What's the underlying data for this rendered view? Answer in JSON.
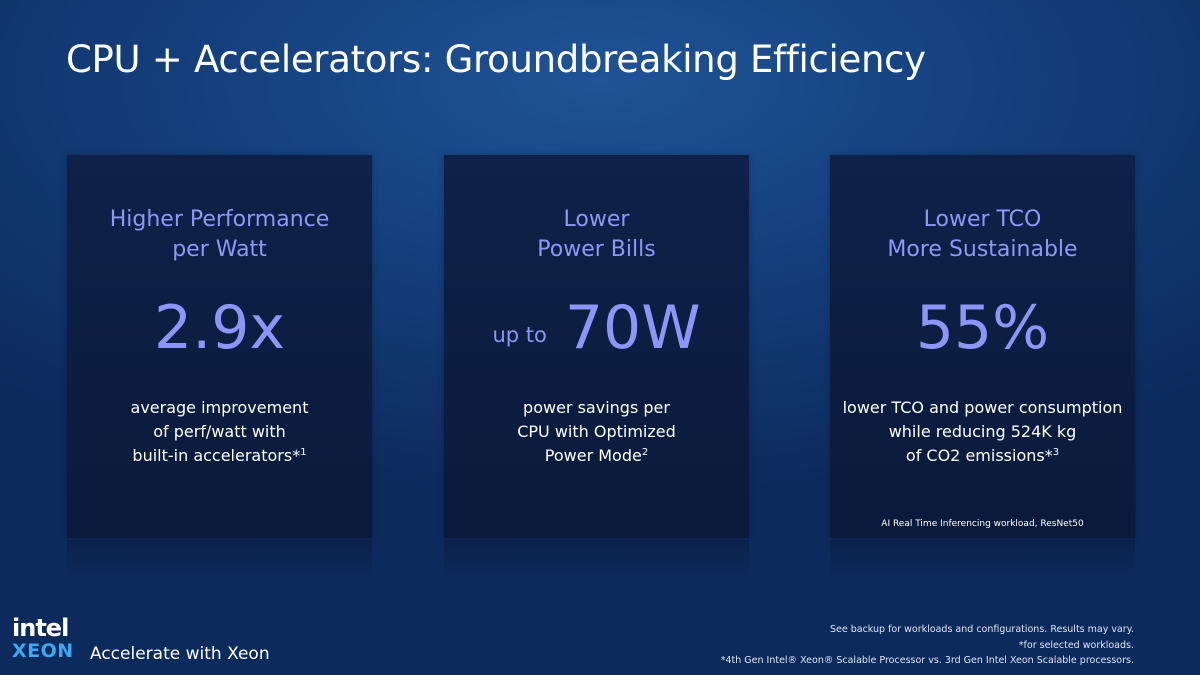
{
  "title": "CPU + Accelerators: Groundbreaking Efficiency",
  "cards": [
    {
      "heading": [
        "Higher Performance",
        "per Watt"
      ],
      "value": "2.9x",
      "description": [
        {
          "text": "average improvement"
        },
        {
          "text": "of perf/watt with"
        },
        {
          "text": "built-in accelerators*",
          "sup": "1"
        }
      ]
    },
    {
      "heading": [
        "Lower",
        "Power Bills"
      ],
      "prefix": "up to",
      "value": "70W",
      "description": [
        {
          "text": "power savings per"
        },
        {
          "text": "CPU with Optimized"
        },
        {
          "text": "Power Mode",
          "sup": "2"
        }
      ]
    },
    {
      "heading": [
        "Lower TCO",
        "More Sustainable"
      ],
      "value": "55%",
      "description": [
        {
          "text": "lower TCO and power consumption"
        },
        {
          "text": "while reducing 524K kg"
        },
        {
          "text": "of CO2 emissions*",
          "sup": "3"
        }
      ],
      "note": "AI Real Time Inferencing workload, ResNet50"
    }
  ],
  "footer": {
    "logo": [
      "intel",
      "XEON"
    ],
    "tagline": "Accelerate with Xeon",
    "notes": [
      "See backup for workloads and configurations. Results may vary.",
      "*for selected workloads.",
      "*4th Gen Intel® Xeon® Scalable Processor vs. 3rd Gen Intel Xeon Scalable processors."
    ]
  }
}
